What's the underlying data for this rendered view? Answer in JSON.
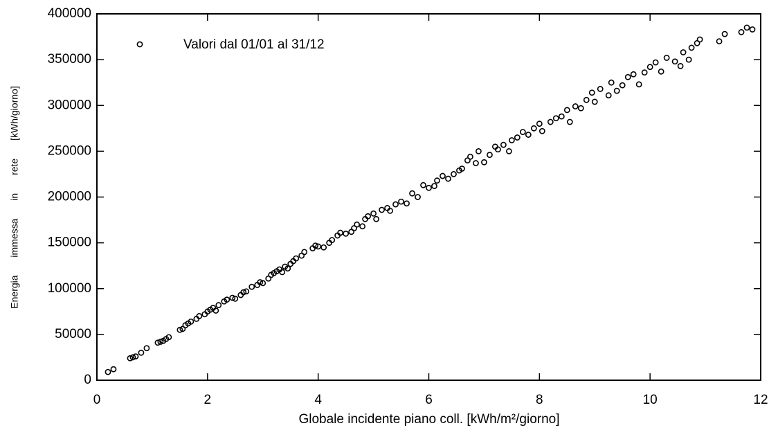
{
  "chart_data": {
    "type": "scatter",
    "xlabel": "Globale incidente piano coll. [kWh/m²/giorno]",
    "ylabel": "Energia immessa in rete [kWh/giorno]",
    "legend": "upper left",
    "xlim": [
      0,
      12
    ],
    "xticks": [
      0,
      2,
      4,
      6,
      8,
      10,
      12
    ],
    "ylim": [
      0,
      400000
    ],
    "yticks": [
      0,
      50000,
      100000,
      150000,
      200000,
      250000,
      300000,
      350000,
      400000
    ],
    "series": [
      {
        "name": "Valori dal 01/01 al 31/12",
        "color": "#000000",
        "x": [
          0.2,
          0.3,
          0.6,
          0.65,
          0.7,
          0.8,
          0.9,
          1.1,
          1.15,
          1.2,
          1.25,
          1.3,
          1.5,
          1.55,
          1.6,
          1.65,
          1.7,
          1.8,
          1.85,
          1.95,
          2.0,
          2.05,
          2.1,
          2.15,
          2.2,
          2.3,
          2.35,
          2.45,
          2.5,
          2.6,
          2.65,
          2.7,
          2.8,
          2.9,
          2.95,
          3.0,
          3.1,
          3.15,
          3.2,
          3.25,
          3.3,
          3.35,
          3.4,
          3.45,
          3.5,
          3.55,
          3.6,
          3.7,
          3.75,
          3.9,
          3.95,
          4.0,
          4.1,
          4.2,
          4.25,
          4.35,
          4.4,
          4.5,
          4.6,
          4.65,
          4.7,
          4.8,
          4.85,
          4.9,
          5.0,
          5.05,
          5.15,
          5.25,
          5.3,
          5.4,
          5.5,
          5.6,
          5.7,
          5.8,
          5.9,
          6.0,
          6.1,
          6.15,
          6.25,
          6.35,
          6.45,
          6.55,
          6.6,
          6.7,
          6.75,
          6.85,
          6.9,
          7.0,
          7.1,
          7.2,
          7.25,
          7.35,
          7.45,
          7.5,
          7.6,
          7.7,
          7.8,
          7.9,
          8.0,
          8.05,
          8.2,
          8.3,
          8.4,
          8.5,
          8.55,
          8.65,
          8.75,
          8.85,
          8.95,
          9.0,
          9.1,
          9.25,
          9.3,
          9.4,
          9.5,
          9.6,
          9.7,
          9.8,
          9.9,
          10.0,
          10.1,
          10.2,
          10.3,
          10.45,
          10.55,
          10.6,
          10.7,
          10.75,
          10.85,
          10.9,
          11.25,
          11.35,
          11.65,
          11.75,
          11.85
        ],
        "values": [
          9000,
          12000,
          24000,
          25000,
          26000,
          30000,
          35000,
          41000,
          42000,
          43000,
          45000,
          47000,
          55000,
          56000,
          60000,
          62000,
          64000,
          67000,
          70000,
          72000,
          75000,
          77000,
          79000,
          76000,
          82000,
          86000,
          88000,
          90000,
          89000,
          93000,
          96000,
          97000,
          102000,
          104000,
          107000,
          106000,
          111000,
          115000,
          117000,
          119000,
          121000,
          118000,
          124000,
          122000,
          127000,
          130000,
          133000,
          136000,
          140000,
          144000,
          147000,
          146000,
          145000,
          150000,
          153000,
          158000,
          161000,
          160000,
          162000,
          166000,
          170000,
          168000,
          176000,
          179000,
          182000,
          176000,
          186000,
          188000,
          185000,
          192000,
          195000,
          193000,
          204000,
          200000,
          213000,
          210000,
          212000,
          218000,
          223000,
          220000,
          225000,
          229000,
          231000,
          240000,
          244000,
          237000,
          250000,
          238000,
          246000,
          255000,
          252000,
          257000,
          250000,
          262000,
          265000,
          271000,
          268000,
          275000,
          280000,
          272000,
          282000,
          286000,
          288000,
          295000,
          282000,
          299000,
          297000,
          306000,
          314000,
          304000,
          318000,
          311000,
          325000,
          316000,
          322000,
          331000,
          334000,
          323000,
          336000,
          342000,
          347000,
          337000,
          352000,
          348000,
          343000,
          358000,
          350000,
          363000,
          368000,
          372000,
          370000,
          378000,
          380000,
          385000,
          383000
        ]
      }
    ]
  }
}
